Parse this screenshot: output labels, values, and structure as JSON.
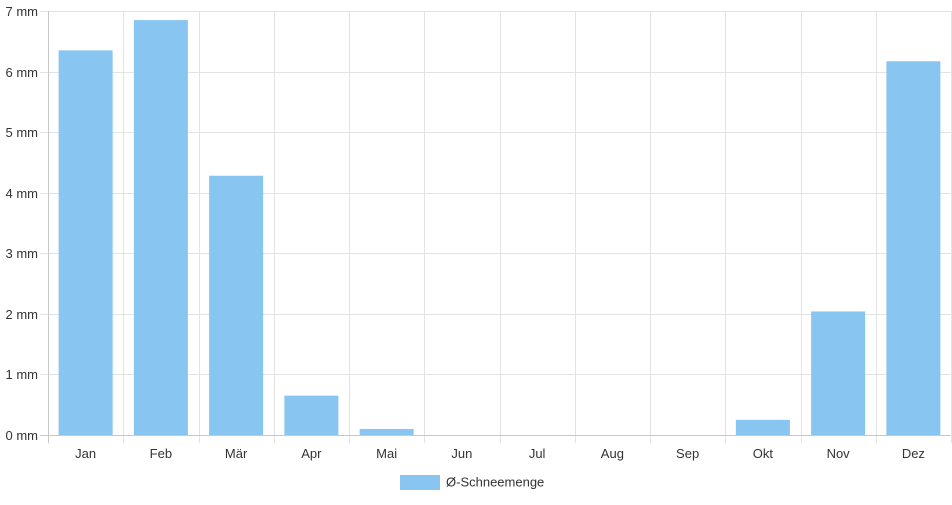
{
  "chart_data": {
    "type": "bar",
    "categories": [
      "Jan",
      "Feb",
      "Mär",
      "Apr",
      "Mai",
      "Jun",
      "Jul",
      "Aug",
      "Sep",
      "Okt",
      "Nov",
      "Dez"
    ],
    "series": [
      {
        "name": "Ø-Schneemenge",
        "values": [
          6.35,
          6.85,
          4.28,
          0.65,
          0.1,
          0,
          0,
          0,
          0,
          0.25,
          2.04,
          6.17
        ],
        "color": "#88c5f1"
      }
    ],
    "unit": "mm",
    "y_ticks": [
      "0 mm",
      "1 mm",
      "2 mm",
      "3 mm",
      "4 mm",
      "5 mm",
      "6 mm",
      "7 mm"
    ],
    "ylim": [
      0,
      7
    ],
    "grid": true,
    "legend_position": "bottom-center",
    "colors": {
      "bar": "#88c5f1",
      "grid": "#e3e3e3",
      "axis": "#c8c8c8",
      "text": "#333333"
    }
  }
}
